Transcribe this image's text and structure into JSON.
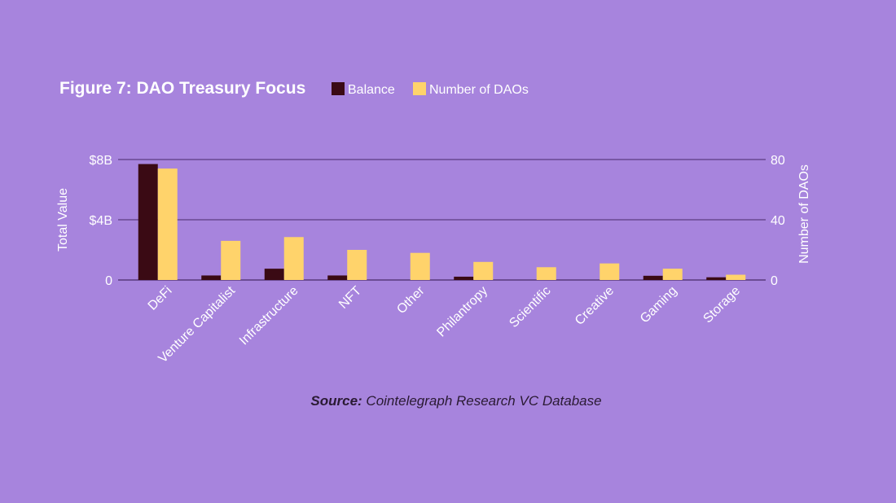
{
  "colors": {
    "background": "#a784dd",
    "balance": "#3a0a14",
    "number_of_daos": "#ffd36b",
    "grid": "#4a2a6a",
    "text": "#ffffff",
    "source_text": "#2a1a33"
  },
  "source": {
    "label": "Source:",
    "text": " Cointelegraph Research VC Database"
  },
  "chart_data": {
    "type": "bar",
    "title": "Figure 7: DAO Treasury Focus",
    "categories": [
      "DeFi",
      "Venture Capitalist",
      "Infrastructure",
      "NFT",
      "Other",
      "Philantropy",
      "Scientific",
      "Creative",
      "Gaming",
      "Storage"
    ],
    "series": [
      {
        "name": "Balance",
        "axis": "left",
        "values": [
          7.7,
          0.3,
          0.75,
          0.3,
          0.0,
          0.22,
          0.0,
          0.0,
          0.28,
          0.18
        ]
      },
      {
        "name": "Number of DAOs",
        "axis": "right",
        "values": [
          74,
          26,
          28.5,
          20,
          18,
          12,
          8.5,
          11,
          7.5,
          3.5
        ]
      }
    ],
    "ylabel": "Total Value",
    "y2label": "Number of DAOs",
    "ylim": [
      0,
      8
    ],
    "y2lim": [
      0,
      80
    ],
    "yticks": [
      "0",
      "$4B",
      "$8B"
    ],
    "y2ticks": [
      "0",
      "40",
      "80"
    ],
    "grid": true,
    "legend_position": "top, right of title"
  }
}
